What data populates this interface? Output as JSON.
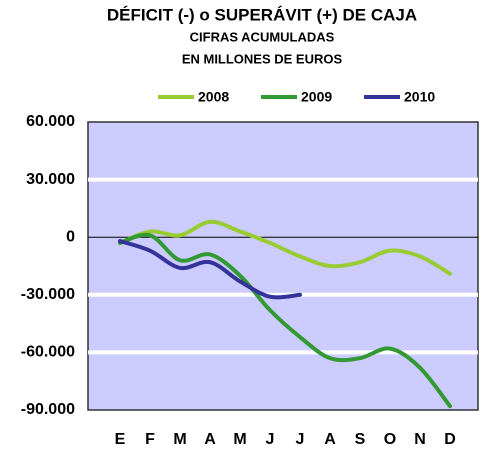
{
  "chart_data": {
    "type": "line",
    "title": "DÉFICIT (-) o SUPERÁVIT (+) DE CAJA",
    "subtitle": [
      "CIFRAS ACUMULADAS",
      "EN MILLONES DE EUROS"
    ],
    "categories": [
      "E",
      "F",
      "M",
      "A",
      "M",
      "J",
      "J",
      "A",
      "S",
      "O",
      "N",
      "D"
    ],
    "series": [
      {
        "name": "2008",
        "color": "#99cc33",
        "values": [
          -3000,
          3000,
          1000,
          8000,
          3000,
          -3000,
          -10000,
          -15000,
          -13000,
          -7000,
          -10000,
          -19000
        ]
      },
      {
        "name": "2009",
        "color": "#339933",
        "values": [
          -3000,
          1000,
          -12000,
          -9000,
          -20000,
          -38000,
          -52000,
          -63000,
          -63000,
          -58000,
          -68000,
          -88000
        ]
      },
      {
        "name": "2010",
        "color": "#333399",
        "values": [
          -2000,
          -7000,
          -16000,
          -13000,
          -23000,
          -31000,
          -30000,
          null,
          null,
          null,
          null,
          null
        ]
      }
    ],
    "ylim": [
      -90000,
      60000
    ],
    "yticks": [
      {
        "value": -90000,
        "label": "-90.000"
      },
      {
        "value": -60000,
        "label": "-60.000"
      },
      {
        "value": -30000,
        "label": "-30.000"
      },
      0,
      {
        "value": 30000,
        "label": "30.000"
      },
      {
        "value": 60000,
        "label": "60.000"
      }
    ],
    "grid": true,
    "legend": "top",
    "background": "#ccccff"
  }
}
